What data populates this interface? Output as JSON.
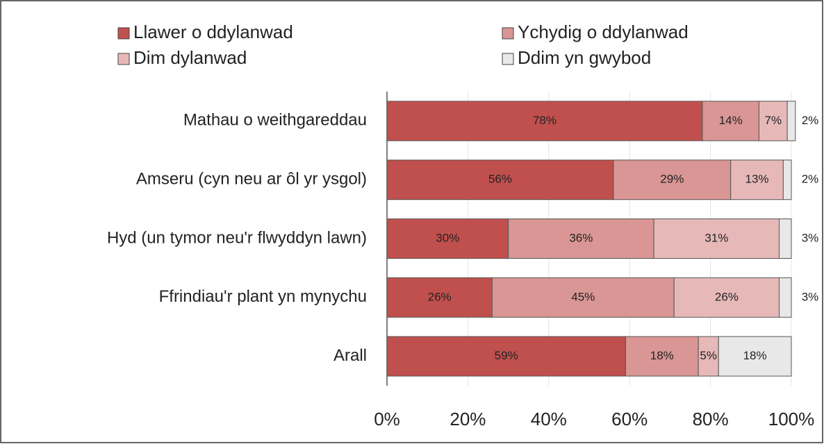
{
  "chart_data": {
    "type": "stacked_barh",
    "categories": [
      "Mathau o weithgareddau",
      "Amseru (cyn neu ar ôl yr ysgol)",
      "Hyd (un tymor neu'r flwyddyn lawn)",
      "Ffrindiau'r plant yn mynychu",
      "Arall"
    ],
    "series": [
      {
        "name": "Llawer o ddylanwad",
        "color": "#c0504d",
        "values": [
          78,
          56,
          30,
          26,
          59
        ],
        "value_labels": [
          "78%",
          "56%",
          "30%",
          "26%",
          "59%"
        ]
      },
      {
        "name": "Ychydig o ddylanwad",
        "color": "#d99694",
        "values": [
          14,
          29,
          36,
          45,
          18
        ],
        "value_labels": [
          "14%",
          "29%",
          "36%",
          "45%",
          "18%"
        ]
      },
      {
        "name": "Dim dylanwad",
        "color": "#e6b9b8",
        "values": [
          7,
          13,
          31,
          26,
          5
        ],
        "value_labels": [
          "7%",
          "13%",
          "31%",
          "26%",
          "5%"
        ]
      },
      {
        "name": "Ddim yn gwybod",
        "color": "#e8e8e8",
        "values": [
          2,
          2,
          3,
          3,
          18
        ],
        "value_labels": [
          "2%",
          "2%",
          "3%",
          "3%",
          "18%"
        ]
      }
    ],
    "xlim": [
      0,
      100
    ],
    "xticks": [
      {
        "value": 0,
        "label": "0%"
      },
      {
        "value": 20,
        "label": "20%"
      },
      {
        "value": 40,
        "label": "40%"
      },
      {
        "value": 60,
        "label": "60%"
      },
      {
        "value": 80,
        "label": "80%"
      },
      {
        "value": 100,
        "label": "100%"
      }
    ],
    "grid": true,
    "legend": "top"
  }
}
